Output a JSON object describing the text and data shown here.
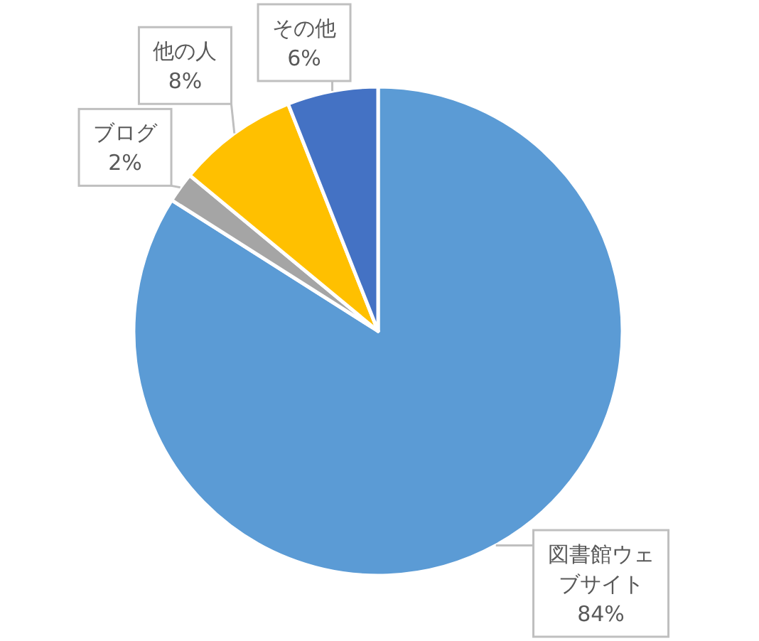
{
  "chart_data": {
    "type": "pie",
    "categories": [
      "図書館ウェブサイト",
      "ブログ",
      "他の人",
      "その他"
    ],
    "values": [
      84,
      2,
      8,
      6
    ],
    "colors": [
      "#5b9bd5",
      "#a5a5a5",
      "#ffc000",
      "#4472c4"
    ],
    "value_labels": [
      "84%",
      "2%",
      "8%",
      "6%"
    ]
  }
}
